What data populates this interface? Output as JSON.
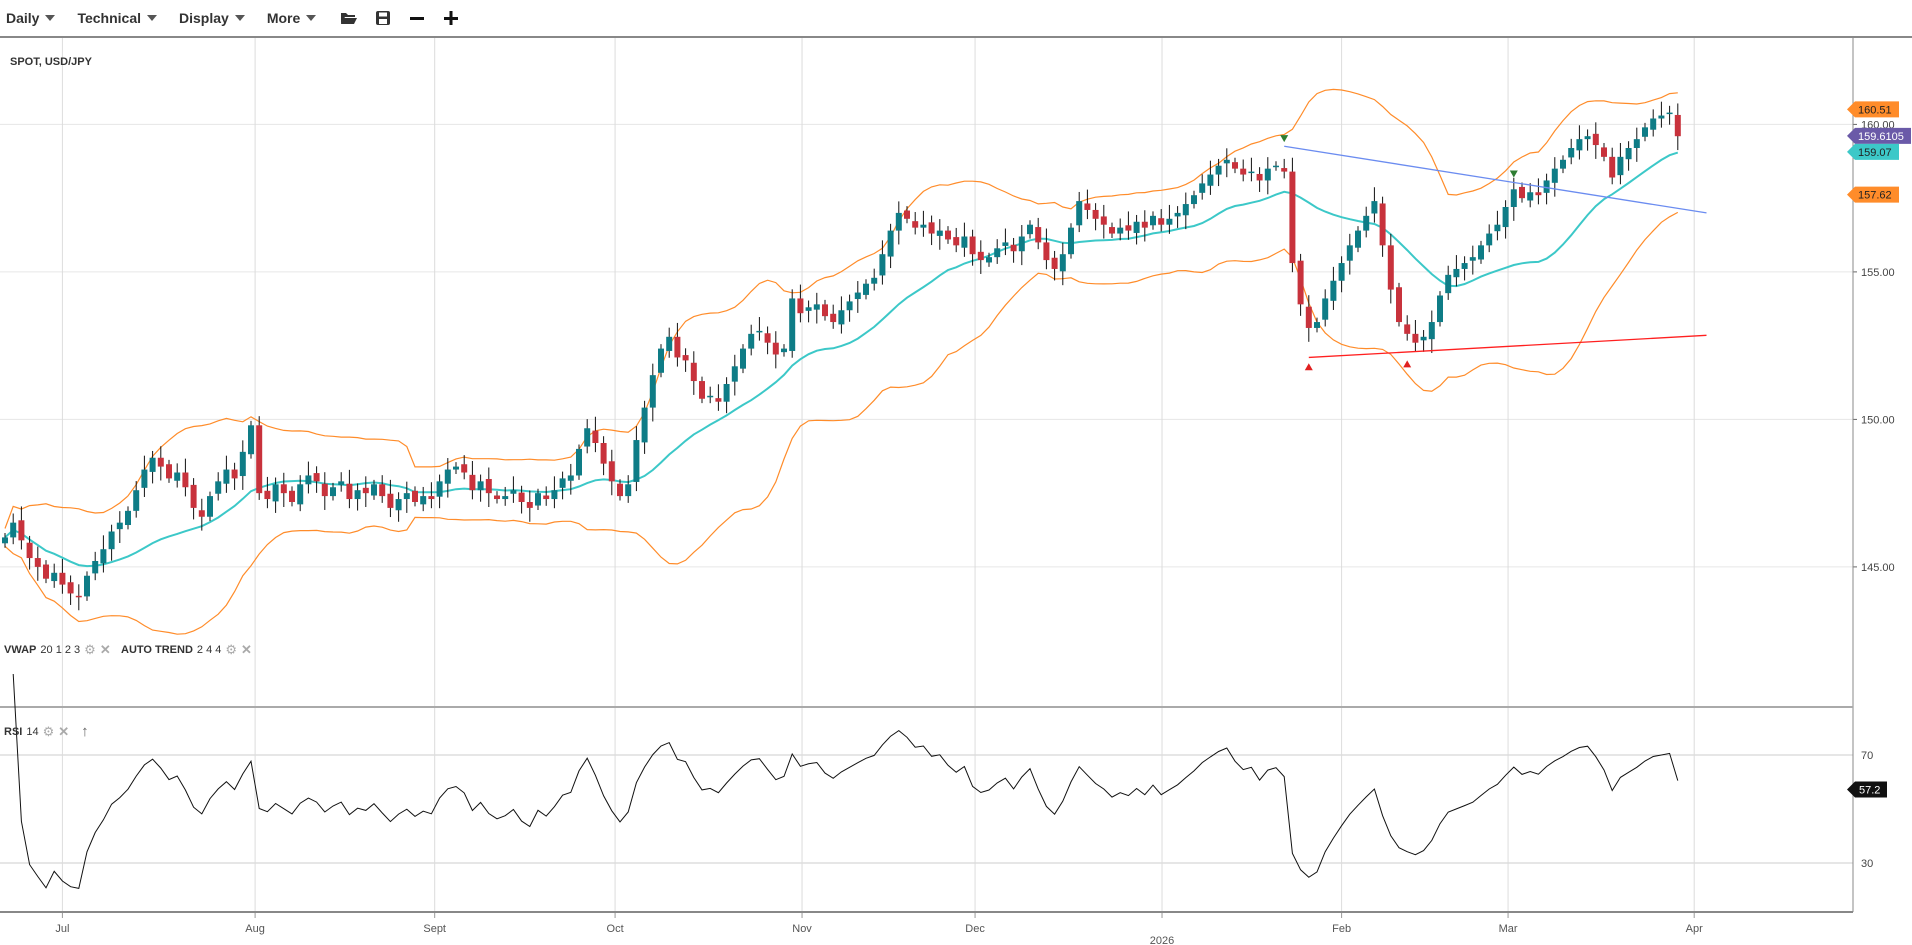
{
  "toolbar": {
    "menus": [
      {
        "label": "Daily"
      },
      {
        "label": "Technical"
      },
      {
        "label": "Display"
      },
      {
        "label": "More"
      }
    ],
    "icons": [
      "folder-open-icon",
      "save-icon",
      "zoom-out-icon",
      "zoom-in-icon"
    ]
  },
  "title": "SPOT, USD/JPY",
  "legends": {
    "vwap": {
      "name": "VWAP",
      "params": "20 1 2 3"
    },
    "autotrend": {
      "name": "AUTO TREND",
      "params": "2 4 4"
    },
    "rsi": {
      "name": "RSI",
      "params": "14"
    }
  },
  "colors": {
    "up": "#0e7c86",
    "down": "#c8323c",
    "band": "#ff8c2a",
    "mid": "#3cc8c8",
    "trend_down": "#6b8cf0",
    "trend_up": "#ff2020",
    "price_tag": "#6a5aa8"
  },
  "chart_data": {
    "type": "candlestick",
    "ylim": [
      142.5,
      163.5
    ],
    "y_ticks": [
      "145.00",
      "150.00",
      "155.00",
      "160.00"
    ],
    "y_tick_values": [
      145,
      150,
      155,
      160
    ],
    "x_ticks": [
      {
        "label": "Jul",
        "index": 7
      },
      {
        "label": "Aug",
        "index": 30.5
      },
      {
        "label": "Sept",
        "index": 52.4
      },
      {
        "label": "Oct",
        "index": 74.4
      },
      {
        "label": "Nov",
        "index": 97.2
      },
      {
        "label": "Dec",
        "index": 118.3
      },
      {
        "label": "2026",
        "index": 141.1
      },
      {
        "label": "Feb",
        "index": 163
      },
      {
        "label": "Mar",
        "index": 183.3
      },
      {
        "label": "Apr",
        "index": 206
      }
    ],
    "close": [
      146.0,
      146.5,
      145.9,
      145.3,
      145.0,
      144.6,
      144.8,
      144.4,
      144.1,
      144.0,
      144.7,
      145.2,
      145.6,
      146.2,
      146.5,
      146.9,
      147.6,
      148.3,
      148.7,
      148.4,
      148.0,
      148.2,
      147.7,
      147.0,
      146.7,
      147.4,
      147.9,
      148.3,
      148.0,
      148.9,
      149.8,
      147.5,
      147.3,
      147.8,
      147.5,
      147.2,
      147.8,
      148.1,
      147.9,
      147.4,
      147.7,
      147.9,
      147.3,
      147.6,
      147.5,
      147.8,
      147.4,
      147.0,
      147.3,
      147.5,
      147.2,
      147.4,
      147.3,
      147.9,
      148.3,
      148.4,
      148.2,
      147.6,
      147.9,
      147.5,
      147.3,
      147.4,
      147.6,
      147.2,
      147.0,
      147.5,
      147.3,
      147.6,
      148.0,
      148.1,
      149.0,
      149.7,
      149.2,
      148.5,
      147.9,
      147.4,
      147.8,
      149.3,
      150.4,
      151.5,
      152.4,
      152.8,
      152.1,
      152.0,
      151.3,
      150.7,
      150.8,
      150.6,
      151.2,
      151.8,
      152.4,
      152.9,
      153.0,
      152.6,
      152.2,
      152.4,
      154.1,
      153.6,
      153.8,
      153.9,
      153.5,
      153.3,
      153.7,
      154.0,
      154.3,
      154.6,
      154.8,
      155.6,
      156.4,
      157.0,
      156.8,
      156.5,
      156.6,
      156.3,
      156.4,
      156.1,
      155.9,
      156.2,
      155.6,
      155.4,
      155.5,
      155.8,
      156.0,
      155.7,
      156.2,
      156.6,
      156.0,
      155.4,
      155.1,
      155.6,
      156.5,
      157.4,
      157.1,
      156.8,
      156.6,
      156.3,
      156.5,
      156.4,
      156.7,
      156.5,
      156.9,
      156.6,
      156.8,
      157.0,
      157.3,
      157.6,
      158.0,
      158.3,
      158.6,
      158.8,
      158.5,
      158.3,
      158.4,
      158.1,
      158.5,
      158.6,
      158.4,
      155.3,
      153.9,
      153.1,
      153.3,
      154.1,
      154.7,
      155.3,
      155.9,
      156.4,
      156.9,
      157.4,
      155.9,
      154.4,
      153.3,
      152.9,
      152.6,
      152.8,
      153.3,
      154.2,
      154.9,
      155.1,
      155.3,
      155.5,
      155.9,
      156.3,
      156.6,
      157.2,
      157.8,
      157.5,
      157.7,
      157.6,
      158.1,
      158.5,
      158.8,
      159.2,
      159.5,
      159.6,
      159.3,
      158.9,
      158.2,
      158.9,
      159.2,
      159.5,
      159.9,
      160.2,
      160.3,
      160.4,
      159.6
    ],
    "bollinger": {
      "period": 20,
      "stddev": 2
    },
    "trendlines": [
      {
        "name": "resistance",
        "from": [
          156,
          159.26
        ],
        "to": [
          207.5,
          157.0
        ]
      },
      {
        "name": "support",
        "from": [
          159,
          152.1
        ],
        "to": [
          207.5,
          152.85
        ]
      }
    ],
    "markers": [
      {
        "type": "down",
        "index": 156,
        "price": 159.5
      },
      {
        "type": "down",
        "index": 184,
        "price": 158.3
      },
      {
        "type": "up",
        "index": 159,
        "price": 151.8
      },
      {
        "type": "up",
        "index": 171,
        "price": 151.9
      }
    ],
    "price_tags": [
      {
        "value": "160.51",
        "kind": "band"
      },
      {
        "value": "159.6105",
        "kind": "price"
      },
      {
        "value": "159.07",
        "kind": "mid"
      },
      {
        "value": "157.62",
        "kind": "band"
      }
    ],
    "rsi": {
      "period": 14,
      "levels": [
        70,
        30
      ],
      "level_labels": [
        "70",
        "30"
      ],
      "last": "57.2"
    }
  }
}
